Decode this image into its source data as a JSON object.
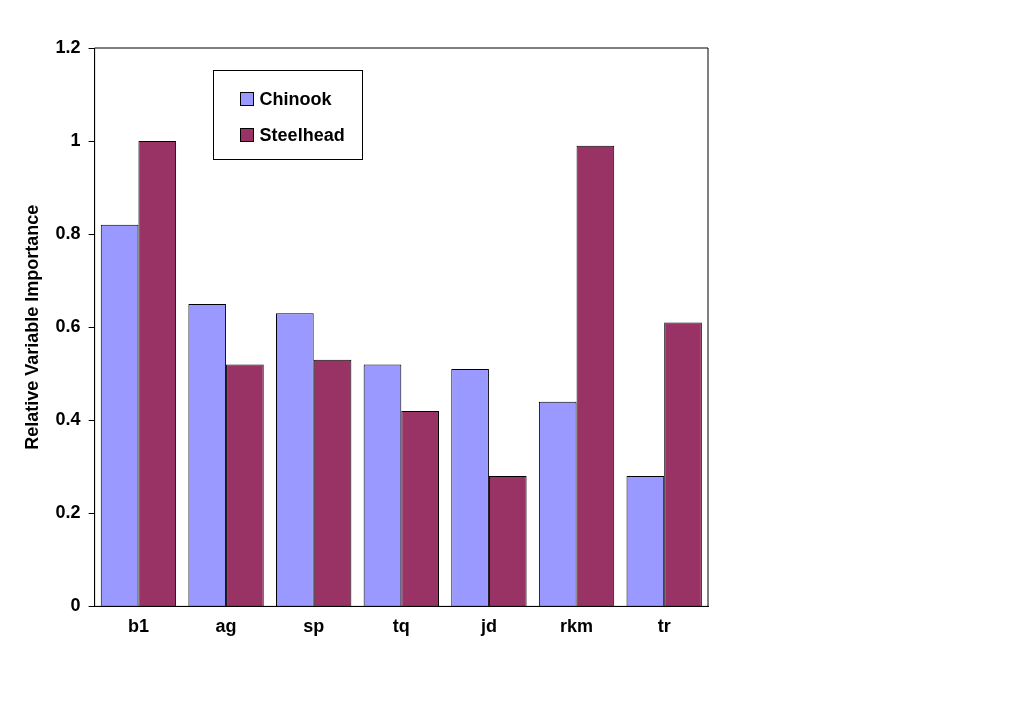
{
  "chart_data": {
    "type": "bar",
    "ylabel": "Relative Variable Importance",
    "categories": [
      "b1",
      "ag",
      "sp",
      "tq",
      "jd",
      "rkm",
      "tr"
    ],
    "series": [
      {
        "name": "Chinook",
        "color": "#9999ff",
        "values": [
          0.82,
          0.65,
          0.63,
          0.52,
          0.51,
          0.44,
          0.28
        ]
      },
      {
        "name": "Steelhead",
        "color": "#993366",
        "values": [
          1.0,
          0.52,
          0.53,
          0.42,
          0.28,
          0.99,
          0.61
        ]
      }
    ],
    "ylim": [
      0,
      1.2
    ],
    "yticks": [
      0,
      0.2,
      0.4,
      0.6,
      0.8,
      1,
      1.2
    ],
    "grid": false,
    "legend": "top left"
  }
}
